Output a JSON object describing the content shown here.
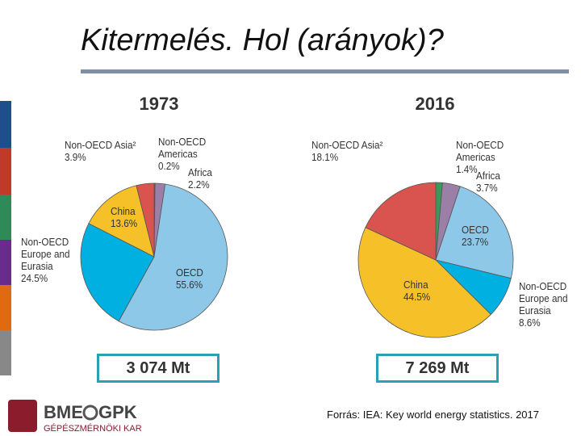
{
  "title": "Kitermelés. Hol (arányok)?",
  "source": "Forrás: IEA: Key world energy statistics. 2017",
  "logo": {
    "name": "BME",
    "faculty": "GPK",
    "subtitle": "GÉPÉSZMÉRNÖKI KAR"
  },
  "chart_data": [
    {
      "type": "pie",
      "title": "1973",
      "total_label": "3 074 Mt",
      "categories": [
        "Non-OECD Americas",
        "Africa",
        "OECD",
        "Non-OECD Europe and Eurasia",
        "China",
        "Non-OECD Asia²"
      ],
      "values": [
        0.2,
        2.2,
        55.6,
        24.5,
        13.6,
        3.9
      ],
      "value_labels": [
        "0.2%",
        "2.2%",
        "55.6%",
        "24.5%",
        "13.6%",
        "3.9%"
      ],
      "colors": [
        "#3a9a5a",
        "#9b7fa6",
        "#8ec8e8",
        "#00b0e0",
        "#f5c028",
        "#d9534f"
      ]
    },
    {
      "type": "pie",
      "title": "2016",
      "total_label": "7 269 Mt",
      "categories": [
        "Non-OECD Americas",
        "Africa",
        "OECD",
        "Non-OECD Europe and Eurasia",
        "China",
        "Non-OECD Asia²"
      ],
      "values": [
        1.4,
        3.7,
        23.7,
        8.6,
        44.5,
        18.1
      ],
      "value_labels": [
        "1.4%",
        "3.7%",
        "23.7%",
        "8.6%",
        "44.5%",
        "18.1%"
      ],
      "colors": [
        "#3a9a5a",
        "#9b7fa6",
        "#8ec8e8",
        "#00b0e0",
        "#f5c028",
        "#d9534f"
      ]
    }
  ]
}
